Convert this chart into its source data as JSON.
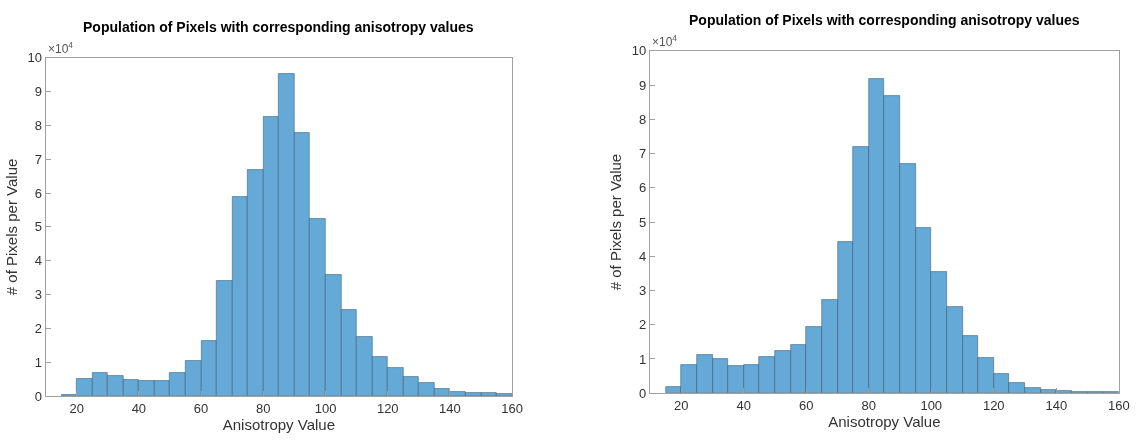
{
  "chart_data": [
    {
      "type": "histogram",
      "title": "Population of Pixels with corresponding anisotropy values",
      "xlabel": "Anisotropy Value",
      "ylabel": "# of Pixels per Value",
      "annotations": [
        "×10$^{4}$"
      ],
      "bins": [
        15,
        20,
        25,
        30,
        35,
        40,
        45,
        50,
        55,
        60,
        65,
        70,
        75,
        80,
        85,
        90,
        95,
        100,
        105,
        110,
        115,
        120,
        125,
        130,
        135,
        140,
        145,
        150,
        155,
        160
      ],
      "values": [
        0.03,
        0.52,
        0.7,
        0.61,
        0.49,
        0.44,
        0.46,
        0.7,
        1.03,
        1.63,
        3.4,
        5.89,
        6.69,
        8.27,
        9.53,
        7.77,
        5.23,
        3.58,
        2.54,
        1.75,
        1.17,
        0.83,
        0.58,
        0.38,
        0.21,
        0.12,
        0.09,
        0.09,
        0.07
      ],
      "color": "#65a9d7",
      "xlim": [
        10,
        160
      ],
      "ylim": [
        0,
        10
      ],
      "xticks": [
        20,
        40,
        60,
        80,
        100,
        120,
        140,
        160
      ],
      "yticks": [
        0,
        1,
        2,
        3,
        4,
        5,
        6,
        7,
        8,
        9,
        10
      ]
    },
    {
      "type": "histogram",
      "title": "Population of Pixels with corresponding anisotropy values",
      "xlabel": "Anisotropy Value",
      "ylabel": "# of Pixels per Value",
      "annotations": [
        "×10$^{4}$"
      ],
      "bins": [
        15,
        20,
        25,
        30,
        35,
        40,
        45,
        50,
        55,
        60,
        65,
        70,
        75,
        80,
        85,
        90,
        95,
        100,
        105,
        110,
        115,
        120,
        125,
        130,
        135,
        140,
        145,
        150,
        155,
        160
      ],
      "values": [
        0.17,
        0.82,
        1.13,
        1.0,
        0.79,
        0.82,
        1.06,
        1.24,
        1.41,
        1.95,
        2.74,
        4.43,
        7.21,
        9.19,
        8.68,
        6.71,
        4.82,
        3.55,
        2.53,
        1.68,
        1.04,
        0.57,
        0.29,
        0.16,
        0.09,
        0.06,
        0.05,
        0.04,
        0.03
      ],
      "color": "#65a9d7",
      "xlim": [
        10,
        160
      ],
      "ylim": [
        0,
        10
      ],
      "xticks": [
        20,
        40,
        60,
        80,
        100,
        120,
        140,
        160
      ],
      "yticks": [
        0,
        1,
        2,
        3,
        4,
        5,
        6,
        7,
        8,
        9,
        10
      ]
    }
  ]
}
